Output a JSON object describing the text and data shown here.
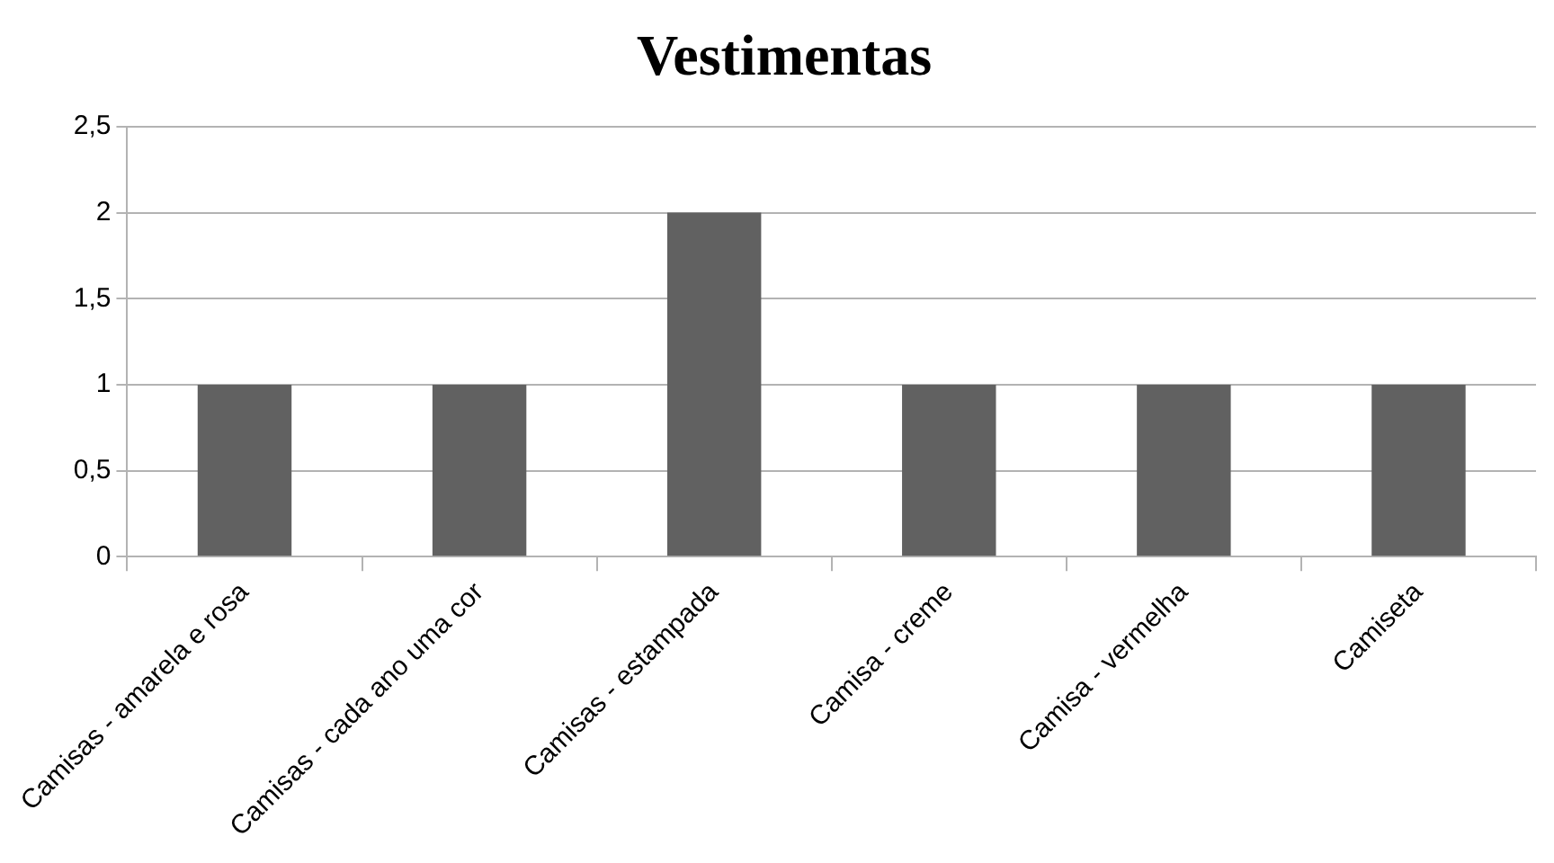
{
  "chart_data": {
    "type": "bar",
    "title": "Vestimentas",
    "categories": [
      "Camisas - amarela e rosa",
      "Camisas - cada ano uma cor",
      "Camisas - estampada",
      "Camisa - creme",
      "Camisa - vermelha",
      "Camiseta"
    ],
    "values": [
      1,
      1,
      2,
      1,
      1,
      1
    ],
    "color": "#616161",
    "ylim": [
      0,
      2.5
    ],
    "yticks": [
      0,
      {
        "value": 0.5,
        "label": "0,5"
      },
      1,
      {
        "value": 1.5,
        "label": "1,5"
      },
      2,
      {
        "value": 2.5,
        "label": "2,5"
      }
    ],
    "grid": "y",
    "legend": false
  }
}
